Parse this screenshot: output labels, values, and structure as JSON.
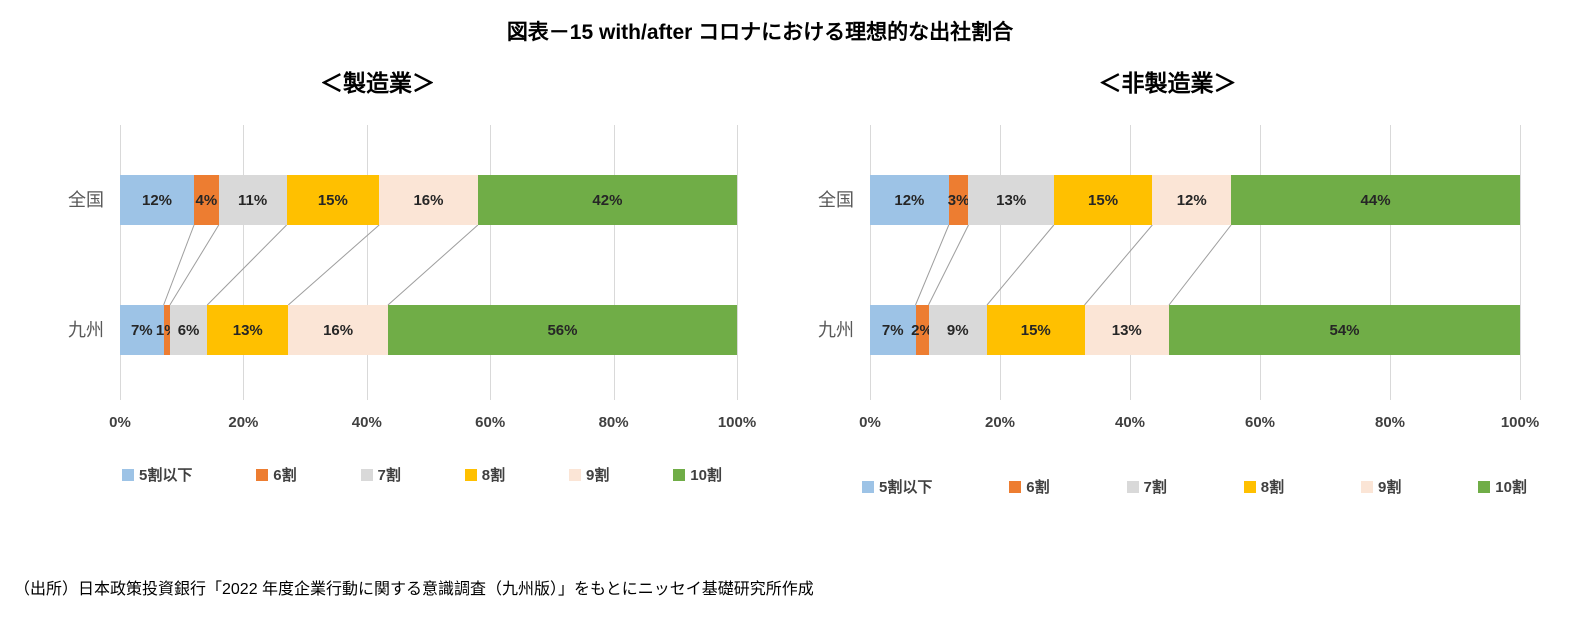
{
  "title": "図表－15 with/after コロナにおける理想的な出社割合",
  "source_note": "（出所）日本政策投資銀行「2022 年度企業行動に関する意識調査（九州版）」をもとにニッセイ基礎研究所作成",
  "chart_data": [
    {
      "type": "bar",
      "subtype": "horizontal-stacked-100",
      "title": "＜製造業＞",
      "categories": [
        "全国",
        "九州"
      ],
      "series": [
        {
          "name": "5割以下",
          "color": "#9DC3E6",
          "values": [
            12,
            7
          ]
        },
        {
          "name": "6割",
          "color": "#ED7D31",
          "values": [
            4,
            1
          ]
        },
        {
          "name": "7割",
          "color": "#D9D9D9",
          "values": [
            11,
            6
          ]
        },
        {
          "name": "8割",
          "color": "#FFC000",
          "values": [
            15,
            13
          ]
        },
        {
          "name": "9割",
          "color": "#FBE5D6",
          "values": [
            16,
            16
          ]
        },
        {
          "name": "10割",
          "color": "#70AD47",
          "values": [
            42,
            56
          ]
        }
      ],
      "value_suffix": "%",
      "xlim": [
        0,
        100
      ],
      "x_ticks": [
        "0%",
        "20%",
        "40%",
        "60%",
        "80%",
        "100%"
      ],
      "gridlines": true,
      "legend_position": "bottom",
      "gridline_color": "#D9D9D9",
      "connector_line_color": "#9E9E9E"
    },
    {
      "type": "bar",
      "subtype": "horizontal-stacked-100",
      "title": "＜非製造業＞",
      "categories": [
        "全国",
        "九州"
      ],
      "series": [
        {
          "name": "5割以下",
          "color": "#9DC3E6",
          "values": [
            12,
            7
          ]
        },
        {
          "name": "6割",
          "color": "#ED7D31",
          "values": [
            3,
            2
          ]
        },
        {
          "name": "7割",
          "color": "#D9D9D9",
          "values": [
            13,
            9
          ]
        },
        {
          "name": "8割",
          "color": "#FFC000",
          "values": [
            15,
            15
          ]
        },
        {
          "name": "9割",
          "color": "#FBE5D6",
          "values": [
            12,
            13
          ]
        },
        {
          "name": "10割",
          "color": "#70AD47",
          "values": [
            44,
            54
          ]
        }
      ],
      "value_suffix": "%",
      "xlim": [
        0,
        100
      ],
      "x_ticks": [
        "0%",
        "20%",
        "40%",
        "60%",
        "80%",
        "100%"
      ],
      "gridlines": true,
      "legend_position": "bottom",
      "gridline_color": "#D9D9D9",
      "connector_line_color": "#9E9E9E"
    }
  ]
}
